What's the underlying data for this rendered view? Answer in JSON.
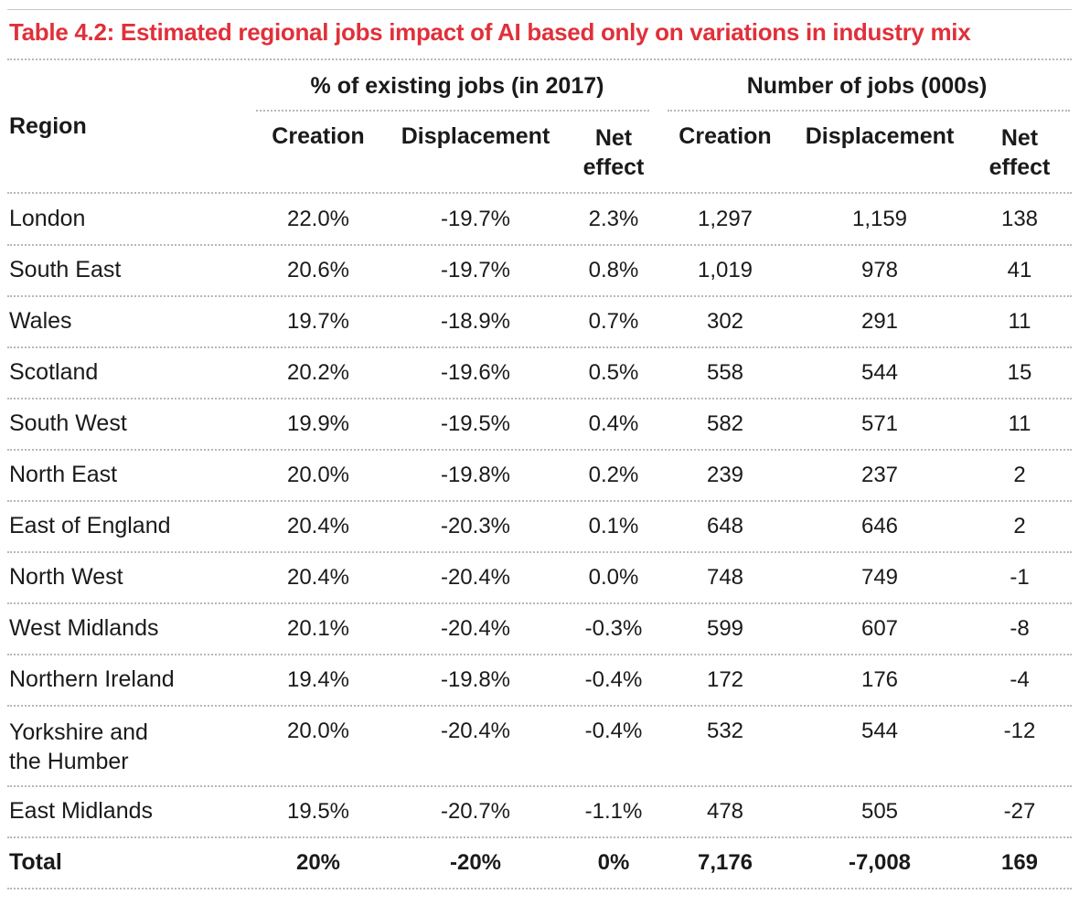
{
  "title": "Table 4.2: Estimated regional jobs impact of AI based only on variations in industry mix",
  "header": {
    "region": "Region",
    "group_pct": "% of existing jobs (in 2017)",
    "group_num": "Number of jobs (000s)",
    "creation": "Creation",
    "displacement": "Displacement",
    "net_line1": "Net",
    "net_line2": "effect"
  },
  "rows": [
    {
      "region": "London",
      "region2": "",
      "creation_pct": "22.0%",
      "displacement_pct": "-19.7%",
      "net_pct": "2.3%",
      "creation_num": "1,297",
      "displacement_num": "1,159",
      "net_num": "138"
    },
    {
      "region": "South East",
      "region2": "",
      "creation_pct": "20.6%",
      "displacement_pct": "-19.7%",
      "net_pct": "0.8%",
      "creation_num": "1,019",
      "displacement_num": "978",
      "net_num": "41"
    },
    {
      "region": "Wales",
      "region2": "",
      "creation_pct": "19.7%",
      "displacement_pct": "-18.9%",
      "net_pct": "0.7%",
      "creation_num": "302",
      "displacement_num": "291",
      "net_num": "11"
    },
    {
      "region": "Scotland",
      "region2": "",
      "creation_pct": "20.2%",
      "displacement_pct": "-19.6%",
      "net_pct": "0.5%",
      "creation_num": "558",
      "displacement_num": "544",
      "net_num": "15"
    },
    {
      "region": "South West",
      "region2": "",
      "creation_pct": "19.9%",
      "displacement_pct": "-19.5%",
      "net_pct": "0.4%",
      "creation_num": "582",
      "displacement_num": "571",
      "net_num": "11"
    },
    {
      "region": "North East",
      "region2": "",
      "creation_pct": "20.0%",
      "displacement_pct": "-19.8%",
      "net_pct": "0.2%",
      "creation_num": "239",
      "displacement_num": "237",
      "net_num": "2"
    },
    {
      "region": "East of England",
      "region2": "",
      "creation_pct": "20.4%",
      "displacement_pct": "-20.3%",
      "net_pct": "0.1%",
      "creation_num": "648",
      "displacement_num": "646",
      "net_num": "2"
    },
    {
      "region": "North West",
      "region2": "",
      "creation_pct": "20.4%",
      "displacement_pct": "-20.4%",
      "net_pct": "0.0%",
      "creation_num": "748",
      "displacement_num": "749",
      "net_num": "-1"
    },
    {
      "region": "West Midlands",
      "region2": "",
      "creation_pct": "20.1%",
      "displacement_pct": "-20.4%",
      "net_pct": "-0.3%",
      "creation_num": "599",
      "displacement_num": "607",
      "net_num": "-8"
    },
    {
      "region": "Northern Ireland",
      "region2": "",
      "creation_pct": "19.4%",
      "displacement_pct": "-19.8%",
      "net_pct": "-0.4%",
      "creation_num": "172",
      "displacement_num": "176",
      "net_num": "-4"
    },
    {
      "region": "Yorkshire and",
      "region2": "the Humber",
      "creation_pct": "20.0%",
      "displacement_pct": "-20.4%",
      "net_pct": "-0.4%",
      "creation_num": "532",
      "displacement_num": "544",
      "net_num": "-12"
    },
    {
      "region": "East Midlands",
      "region2": "",
      "creation_pct": "19.5%",
      "displacement_pct": "-20.7%",
      "net_pct": "-1.1%",
      "creation_num": "478",
      "displacement_num": "505",
      "net_num": "-27"
    }
  ],
  "total": {
    "region": "Total",
    "creation_pct": "20%",
    "displacement_pct": "-20%",
    "net_pct": "0%",
    "creation_num": "7,176",
    "displacement_num": "-7,008",
    "net_num": "169"
  },
  "colors": {
    "title": "#e0303a",
    "rule": "#b8b8b8"
  }
}
